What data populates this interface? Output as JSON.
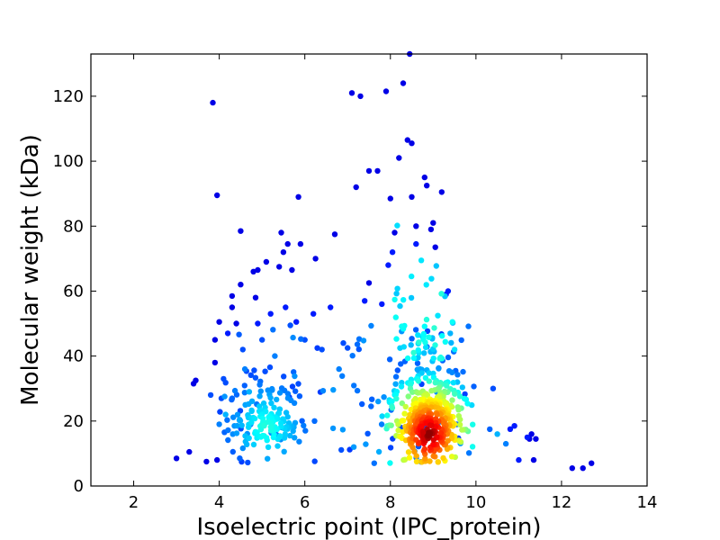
{
  "chart_data": {
    "type": "scatter",
    "title": "",
    "xlabel": "Isoelectric point (IPC_protein)",
    "ylabel": "Molecular weight (kDa)",
    "xlim": [
      1,
      14
    ],
    "ylim": [
      0,
      133
    ],
    "xticks": [
      2,
      4,
      6,
      8,
      10,
      12,
      14
    ],
    "yticks": [
      0,
      20,
      40,
      60,
      80,
      100,
      120
    ],
    "grid": false,
    "legend": "none",
    "colormap": "jet (point density)",
    "points": [
      [
        3.0,
        8.5,
        0.1
      ],
      [
        3.3,
        10.5,
        0.1
      ],
      [
        3.4,
        31.5,
        0.1
      ],
      [
        3.45,
        32.5,
        0.1
      ],
      [
        3.7,
        7.5,
        0.1
      ],
      [
        3.8,
        28,
        0.2
      ],
      [
        3.85,
        118,
        0.1
      ],
      [
        3.9,
        45,
        0.1
      ],
      [
        3.9,
        38,
        0.1
      ],
      [
        3.95,
        8,
        0.1
      ],
      [
        3.95,
        89.5,
        0.1
      ],
      [
        4.0,
        50.5,
        0.1
      ],
      [
        4.0,
        19,
        0.25
      ],
      [
        4.05,
        27,
        0.2
      ],
      [
        4.1,
        33,
        0.2
      ],
      [
        4.15,
        22,
        0.3
      ],
      [
        4.2,
        47,
        0.15
      ],
      [
        4.3,
        58.5,
        0.1
      ],
      [
        4.3,
        55,
        0.1
      ],
      [
        4.4,
        50,
        0.1
      ],
      [
        4.5,
        78.5,
        0.1
      ],
      [
        4.5,
        62,
        0.1
      ],
      [
        4.55,
        42,
        0.2
      ],
      [
        4.6,
        36,
        0.25
      ],
      [
        4.7,
        29,
        0.3
      ],
      [
        4.8,
        66,
        0.1
      ],
      [
        4.85,
        58,
        0.1
      ],
      [
        4.9,
        66.5,
        0.1
      ],
      [
        4.9,
        50,
        0.15
      ],
      [
        5.0,
        45,
        0.2
      ],
      [
        5.1,
        69,
        0.1
      ],
      [
        5.2,
        53,
        0.15
      ],
      [
        5.3,
        40,
        0.25
      ],
      [
        5.4,
        67.5,
        0.1
      ],
      [
        5.45,
        78,
        0.1
      ],
      [
        5.5,
        72,
        0.1
      ],
      [
        5.55,
        55,
        0.15
      ],
      [
        5.6,
        74.5,
        0.1
      ],
      [
        5.7,
        66.5,
        0.1
      ],
      [
        5.8,
        50.5,
        0.15
      ],
      [
        5.85,
        89,
        0.1
      ],
      [
        5.9,
        74.5,
        0.1
      ],
      [
        6.0,
        45,
        0.2
      ],
      [
        6.2,
        53,
        0.15
      ],
      [
        6.25,
        70,
        0.1
      ],
      [
        6.4,
        42,
        0.2
      ],
      [
        6.6,
        55,
        0.15
      ],
      [
        6.7,
        77.5,
        0.1
      ],
      [
        6.8,
        36,
        0.25
      ],
      [
        6.9,
        44,
        0.2
      ],
      [
        7.0,
        42.5,
        0.2
      ],
      [
        7.1,
        121,
        0.1
      ],
      [
        7.2,
        92,
        0.1
      ],
      [
        7.3,
        120,
        0.1
      ],
      [
        7.4,
        57,
        0.15
      ],
      [
        7.5,
        62.5,
        0.1
      ],
      [
        7.5,
        97,
        0.1
      ],
      [
        7.7,
        97,
        0.1
      ],
      [
        7.8,
        56,
        0.15
      ],
      [
        7.9,
        121.5,
        0.1
      ],
      [
        7.95,
        68,
        0.15
      ],
      [
        8.0,
        88.5,
        0.1
      ],
      [
        8.05,
        72,
        0.15
      ],
      [
        8.1,
        78,
        0.1
      ],
      [
        8.2,
        101,
        0.1
      ],
      [
        8.3,
        124,
        0.1
      ],
      [
        8.35,
        134,
        0.1
      ],
      [
        8.4,
        106.5,
        0.1
      ],
      [
        8.45,
        133,
        0.1
      ],
      [
        8.5,
        105.5,
        0.1
      ],
      [
        8.5,
        89,
        0.1
      ],
      [
        8.6,
        74.5,
        0.15
      ],
      [
        8.6,
        80,
        0.1
      ],
      [
        8.8,
        95,
        0.1
      ],
      [
        8.85,
        92.5,
        0.1
      ],
      [
        8.95,
        79,
        0.1
      ],
      [
        9.0,
        81,
        0.1
      ],
      [
        9.05,
        73.5,
        0.1
      ],
      [
        9.2,
        90.5,
        0.1
      ],
      [
        9.3,
        59,
        0.15
      ],
      [
        9.35,
        60,
        0.15
      ],
      [
        9.4,
        47,
        0.3
      ],
      [
        9.5,
        42,
        0.35
      ],
      [
        10.4,
        30,
        0.2
      ],
      [
        10.5,
        16,
        0.3
      ],
      [
        10.7,
        13,
        0.25
      ],
      [
        10.8,
        17.5,
        0.15
      ],
      [
        10.9,
        18.5,
        0.15
      ],
      [
        11.0,
        8,
        0.15
      ],
      [
        11.2,
        15,
        0.15
      ],
      [
        11.25,
        14.5,
        0.1
      ],
      [
        11.3,
        16,
        0.1
      ],
      [
        11.35,
        8,
        0.1
      ],
      [
        11.4,
        14.5,
        0.1
      ],
      [
        12.25,
        5.5,
        0.1
      ],
      [
        12.5,
        5.5,
        0.1
      ],
      [
        12.7,
        7,
        0.1
      ]
    ]
  }
}
